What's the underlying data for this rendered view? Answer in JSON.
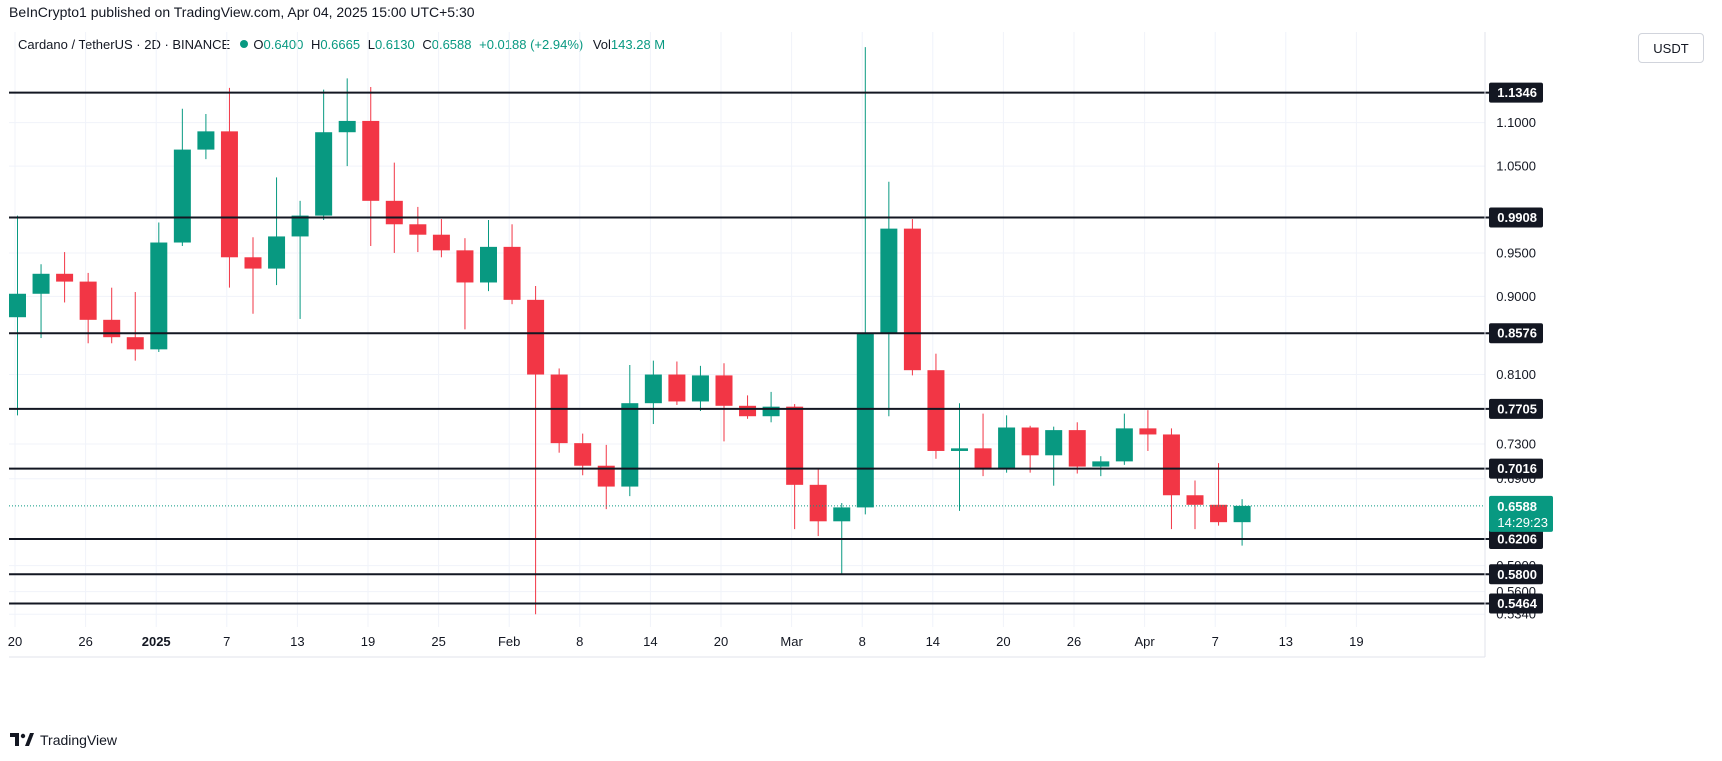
{
  "header": {
    "published": "BeInCrypto1 published on TradingView.com, Apr 04, 2025 15:00 UTC+5:30",
    "symbol": "Cardano / TetherUS · 2D · BINANCE",
    "o_label": "O",
    "o_value": "0.6400",
    "h_label": "H",
    "h_value": "0.6665",
    "l_label": "L",
    "l_value": "0.6130",
    "c_label": "C",
    "c_value": "0.6588",
    "change": "+0.0188 (+2.94%)",
    "vol_label": "Vol",
    "vol_value": "143.28 M",
    "currency_button": "USDT"
  },
  "footer": {
    "brand": "TradingView",
    "logo_icon": "tradingview-logo-icon"
  },
  "colors": {
    "up": "#089981",
    "down": "#f23645",
    "line": "#131722",
    "grid": "#f0f3fa"
  },
  "chart_data": {
    "type": "candlestick",
    "interval": "2D",
    "y_axis_ticks": [
      "1.1000",
      "1.0500",
      "0.9500",
      "0.9000",
      "0.8100",
      "0.7300",
      "0.6900",
      "0.5900",
      "0.5600",
      "0.5340"
    ],
    "x_axis_ticks": [
      "20",
      "26",
      "2025",
      "7",
      "13",
      "19",
      "25",
      "Feb",
      "8",
      "14",
      "20",
      "Mar",
      "8",
      "14",
      "20",
      "26",
      "Apr",
      "7",
      "13",
      "19"
    ],
    "horizontal_levels": [
      "1.1346",
      "0.9908",
      "0.8576",
      "0.7705",
      "0.7016",
      "0.6206",
      "0.5800",
      "0.5464"
    ],
    "current_price": "0.6588",
    "countdown": "14:29:23",
    "candles": [
      {
        "o": 0.876,
        "h": 0.993,
        "l": 0.763,
        "c": 0.903
      },
      {
        "o": 0.903,
        "h": 0.937,
        "l": 0.852,
        "c": 0.926
      },
      {
        "o": 0.926,
        "h": 0.951,
        "l": 0.893,
        "c": 0.917
      },
      {
        "o": 0.917,
        "h": 0.927,
        "l": 0.846,
        "c": 0.873
      },
      {
        "o": 0.873,
        "h": 0.91,
        "l": 0.846,
        "c": 0.853
      },
      {
        "o": 0.853,
        "h": 0.905,
        "l": 0.826,
        "c": 0.839
      },
      {
        "o": 0.839,
        "h": 0.985,
        "l": 0.836,
        "c": 0.962
      },
      {
        "o": 0.962,
        "h": 1.116,
        "l": 0.958,
        "c": 1.069
      },
      {
        "o": 1.069,
        "h": 1.11,
        "l": 1.058,
        "c": 1.09
      },
      {
        "o": 1.09,
        "h": 1.14,
        "l": 0.91,
        "c": 0.945
      },
      {
        "o": 0.945,
        "h": 0.968,
        "l": 0.88,
        "c": 0.932
      },
      {
        "o": 0.932,
        "h": 1.037,
        "l": 0.913,
        "c": 0.969
      },
      {
        "o": 0.969,
        "h": 1.01,
        "l": 0.874,
        "c": 0.993
      },
      {
        "o": 0.993,
        "h": 1.138,
        "l": 0.988,
        "c": 1.089
      },
      {
        "o": 1.089,
        "h": 1.151,
        "l": 1.05,
        "c": 1.102
      },
      {
        "o": 1.102,
        "h": 1.141,
        "l": 0.958,
        "c": 1.01
      },
      {
        "o": 1.01,
        "h": 1.054,
        "l": 0.95,
        "c": 0.983
      },
      {
        "o": 0.983,
        "h": 1.003,
        "l": 0.951,
        "c": 0.971
      },
      {
        "o": 0.971,
        "h": 0.989,
        "l": 0.945,
        "c": 0.953
      },
      {
        "o": 0.953,
        "h": 0.967,
        "l": 0.862,
        "c": 0.916
      },
      {
        "o": 0.916,
        "h": 0.988,
        "l": 0.906,
        "c": 0.957
      },
      {
        "o": 0.957,
        "h": 0.983,
        "l": 0.891,
        "c": 0.896
      },
      {
        "o": 0.896,
        "h": 0.912,
        "l": 0.534,
        "c": 0.81
      },
      {
        "o": 0.81,
        "h": 0.817,
        "l": 0.72,
        "c": 0.731
      },
      {
        "o": 0.731,
        "h": 0.742,
        "l": 0.694,
        "c": 0.705
      },
      {
        "o": 0.705,
        "h": 0.729,
        "l": 0.655,
        "c": 0.681
      },
      {
        "o": 0.681,
        "h": 0.821,
        "l": 0.67,
        "c": 0.777
      },
      {
        "o": 0.777,
        "h": 0.826,
        "l": 0.753,
        "c": 0.81
      },
      {
        "o": 0.81,
        "h": 0.825,
        "l": 0.775,
        "c": 0.779
      },
      {
        "o": 0.779,
        "h": 0.82,
        "l": 0.768,
        "c": 0.809
      },
      {
        "o": 0.809,
        "h": 0.823,
        "l": 0.733,
        "c": 0.774
      },
      {
        "o": 0.774,
        "h": 0.786,
        "l": 0.759,
        "c": 0.762
      },
      {
        "o": 0.762,
        "h": 0.79,
        "l": 0.755,
        "c": 0.773
      },
      {
        "o": 0.773,
        "h": 0.776,
        "l": 0.632,
        "c": 0.683
      },
      {
        "o": 0.683,
        "h": 0.702,
        "l": 0.624,
        "c": 0.641
      },
      {
        "o": 0.641,
        "h": 0.662,
        "l": 0.58,
        "c": 0.657
      },
      {
        "o": 0.657,
        "h": 1.187,
        "l": 0.649,
        "c": 0.857
      },
      {
        "o": 0.857,
        "h": 1.032,
        "l": 0.762,
        "c": 0.978
      },
      {
        "o": 0.978,
        "h": 0.989,
        "l": 0.809,
        "c": 0.815
      },
      {
        "o": 0.815,
        "h": 0.834,
        "l": 0.713,
        "c": 0.722
      },
      {
        "o": 0.722,
        "h": 0.777,
        "l": 0.653,
        "c": 0.725
      },
      {
        "o": 0.725,
        "h": 0.765,
        "l": 0.693,
        "c": 0.701
      },
      {
        "o": 0.701,
        "h": 0.763,
        "l": 0.697,
        "c": 0.749
      },
      {
        "o": 0.749,
        "h": 0.751,
        "l": 0.697,
        "c": 0.717
      },
      {
        "o": 0.717,
        "h": 0.75,
        "l": 0.682,
        "c": 0.746
      },
      {
        "o": 0.746,
        "h": 0.755,
        "l": 0.696,
        "c": 0.704
      },
      {
        "o": 0.704,
        "h": 0.716,
        "l": 0.693,
        "c": 0.71
      },
      {
        "o": 0.71,
        "h": 0.765,
        "l": 0.706,
        "c": 0.748
      },
      {
        "o": 0.748,
        "h": 0.769,
        "l": 0.722,
        "c": 0.741
      },
      {
        "o": 0.741,
        "h": 0.748,
        "l": 0.632,
        "c": 0.671
      },
      {
        "o": 0.671,
        "h": 0.688,
        "l": 0.632,
        "c": 0.66
      },
      {
        "o": 0.66,
        "h": 0.708,
        "l": 0.636,
        "c": 0.64
      },
      {
        "o": 0.64,
        "h": 0.6665,
        "l": 0.613,
        "c": 0.6588
      }
    ]
  }
}
